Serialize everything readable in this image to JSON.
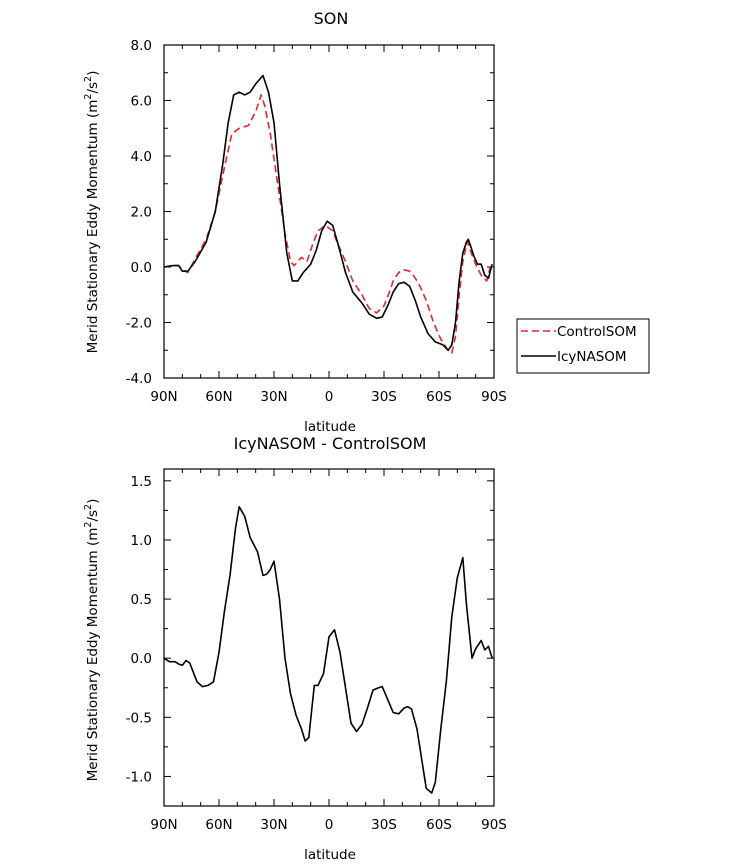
{
  "chart_data": [
    {
      "type": "line",
      "title": "SON",
      "xlabel": "latitude",
      "ylabel": "Merid Stationary Eddy Momentum (m²/s²)",
      "ylabel_main": "Merid Stationary Eddy Momentum (m",
      "ylabel_units_sup": "2",
      "ylabel_units_mid": "/s",
      "ylabel_units_close": ")",
      "x_ticks": [
        "90N",
        "60N",
        "30N",
        "0",
        "30S",
        "60S",
        "90S"
      ],
      "x_tick_values": [
        90,
        60,
        30,
        0,
        -30,
        -60,
        -90
      ],
      "y_ticks": [
        "-4.0",
        "-2.0",
        "0.0",
        "2.0",
        "4.0",
        "6.0",
        "8.0"
      ],
      "y_tick_values": [
        -4,
        -2,
        0,
        2,
        4,
        6,
        8
      ],
      "xlim": [
        90,
        -90
      ],
      "ylim": [
        -4,
        8
      ],
      "legend": {
        "placement": "right-outside"
      },
      "series": [
        {
          "name": "ControlSOM",
          "color": "#e8262c",
          "dash": "dashed",
          "x": [
            90,
            85,
            82,
            80,
            77,
            73,
            67,
            62,
            57,
            53,
            49,
            44,
            40,
            37,
            35,
            32,
            28,
            24,
            21,
            19,
            15,
            12,
            9,
            6,
            2,
            -2,
            -5,
            -9,
            -13,
            -18,
            -22,
            -26,
            -30,
            -33,
            -35,
            -38,
            -41,
            -44,
            -46,
            -49,
            -53,
            -57,
            -61,
            -65,
            -67,
            -69,
            -71,
            -73,
            -75,
            -76,
            -77,
            -80,
            -83,
            -86,
            -88,
            -89
          ],
          "values": [
            0.0,
            0.05,
            0.05,
            -0.1,
            -0.2,
            0.3,
            1.0,
            2.0,
            3.6,
            4.8,
            5.0,
            5.1,
            5.6,
            6.2,
            5.8,
            4.8,
            3.0,
            1.2,
            0.2,
            0.05,
            0.35,
            0.2,
            0.8,
            1.3,
            1.5,
            1.3,
            0.8,
            0.2,
            -0.5,
            -1.0,
            -1.5,
            -1.65,
            -1.4,
            -0.9,
            -0.5,
            -0.2,
            -0.1,
            -0.15,
            -0.3,
            -0.6,
            -1.2,
            -2.0,
            -2.6,
            -3.0,
            -3.1,
            -2.5,
            -1.0,
            0.2,
            0.8,
            0.9,
            0.6,
            0.1,
            -0.3,
            -0.5,
            0.0,
            0.05
          ]
        },
        {
          "name": "IcyNASOM",
          "color": "#000000",
          "dash": "solid",
          "x": [
            90,
            85,
            82,
            80,
            77,
            73,
            67,
            62,
            58,
            55,
            52,
            49,
            46,
            43,
            40,
            36,
            33,
            30,
            27,
            23,
            20,
            17,
            14,
            10,
            7,
            4,
            1,
            -2,
            -5,
            -9,
            -13,
            -18,
            -22,
            -26,
            -29,
            -32,
            -35,
            -38,
            -41,
            -44,
            -47,
            -50,
            -54,
            -58,
            -62,
            -65,
            -67,
            -69,
            -71,
            -73,
            -75,
            -76,
            -77,
            -79,
            -81,
            -83,
            -85,
            -87,
            -89
          ],
          "values": [
            0.0,
            0.05,
            0.05,
            -0.15,
            -0.15,
            0.2,
            0.9,
            2.0,
            3.7,
            5.2,
            6.2,
            6.3,
            6.2,
            6.3,
            6.6,
            6.9,
            6.3,
            5.2,
            3.0,
            0.5,
            -0.5,
            -0.5,
            -0.2,
            0.1,
            0.6,
            1.3,
            1.65,
            1.5,
            0.8,
            -0.2,
            -0.9,
            -1.3,
            -1.7,
            -1.85,
            -1.8,
            -1.4,
            -0.9,
            -0.6,
            -0.55,
            -0.7,
            -1.2,
            -1.8,
            -2.4,
            -2.7,
            -2.8,
            -3.0,
            -2.8,
            -2.0,
            -0.5,
            0.5,
            0.9,
            1.0,
            0.8,
            0.4,
            0.1,
            0.1,
            -0.3,
            -0.4,
            0.1
          ]
        }
      ]
    },
    {
      "type": "line",
      "title": "IcyNASOM - ControlSOM",
      "xlabel": "latitude",
      "ylabel": "Merid Stationary Eddy Momentum (m²/s²)",
      "ylabel_main": "Merid Stationary Eddy Momentum (m",
      "ylabel_units_sup": "2",
      "ylabel_units_mid": "/s",
      "ylabel_units_close": ")",
      "x_ticks": [
        "90N",
        "60N",
        "30N",
        "0",
        "30S",
        "60S",
        "90S"
      ],
      "x_tick_values": [
        90,
        60,
        30,
        0,
        -30,
        -60,
        -90
      ],
      "y_ticks": [
        "-1.0",
        "-0.5",
        "0.0",
        "0.5",
        "1.0",
        "1.5"
      ],
      "y_tick_values": [
        -1.0,
        -0.5,
        0.0,
        0.5,
        1.0,
        1.5
      ],
      "xlim": [
        90,
        -90
      ],
      "ylim": [
        -1.25,
        1.6
      ],
      "series": [
        {
          "color": "#000000",
          "dash": "solid",
          "x": [
            90,
            87,
            84,
            82,
            80,
            78,
            76,
            72,
            69,
            66,
            63,
            60,
            57,
            54,
            51,
            49,
            46,
            43,
            39,
            36,
            34,
            32,
            30,
            27,
            24,
            21,
            18,
            15,
            13,
            11,
            8,
            6,
            3,
            0,
            -3,
            -6,
            -9,
            -12,
            -15,
            -18,
            -21,
            -24,
            -27,
            -29,
            -32,
            -35,
            -38,
            -41,
            -43,
            -45,
            -48,
            -50,
            -53,
            -56,
            -58,
            -61,
            -64,
            -67,
            -70,
            -73,
            -75,
            -78,
            -80,
            -83,
            -85,
            -87,
            -89
          ],
          "values": [
            0.0,
            -0.03,
            -0.03,
            -0.05,
            -0.06,
            -0.02,
            -0.04,
            -0.2,
            -0.24,
            -0.23,
            -0.2,
            0.05,
            0.4,
            0.7,
            1.1,
            1.28,
            1.2,
            1.02,
            0.9,
            0.7,
            0.71,
            0.75,
            0.82,
            0.5,
            0.0,
            -0.3,
            -0.48,
            -0.6,
            -0.7,
            -0.67,
            -0.23,
            -0.23,
            -0.13,
            0.18,
            0.24,
            0.05,
            -0.25,
            -0.55,
            -0.62,
            -0.56,
            -0.42,
            -0.27,
            -0.25,
            -0.24,
            -0.35,
            -0.46,
            -0.47,
            -0.42,
            -0.41,
            -0.43,
            -0.6,
            -0.8,
            -1.1,
            -1.14,
            -1.05,
            -0.6,
            -0.2,
            0.35,
            0.68,
            0.85,
            0.45,
            0.0,
            0.08,
            0.15,
            0.07,
            0.1,
            0.0
          ]
        }
      ]
    }
  ]
}
